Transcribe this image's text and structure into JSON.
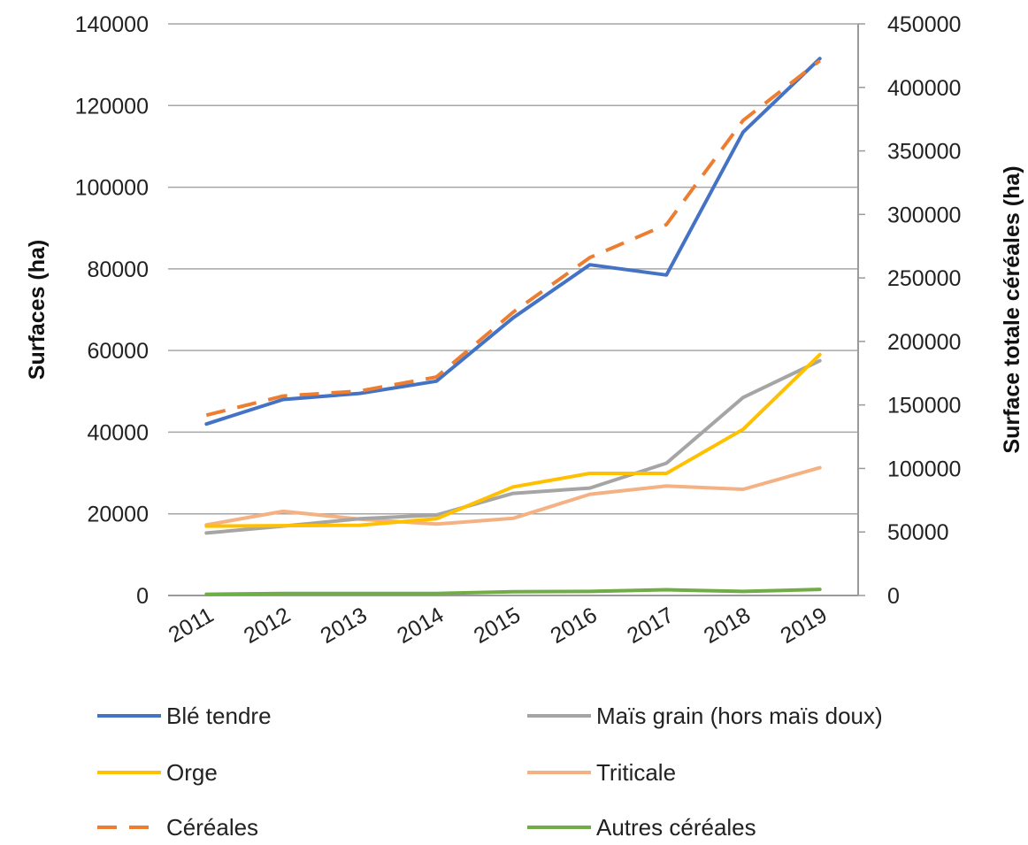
{
  "chart_data": {
    "type": "line",
    "categories": [
      "2011",
      "2012",
      "2013",
      "2014",
      "2015",
      "2016",
      "2017",
      "2018",
      "2019"
    ],
    "ylabel": "Surfaces (ha)",
    "y2label": "Surface totale céréales (ha)",
    "ylim": [
      0,
      140000
    ],
    "y2lim": [
      0,
      450000
    ],
    "yticks": [
      "0",
      "20000",
      "40000",
      "60000",
      "80000",
      "100000",
      "120000",
      "140000"
    ],
    "y2ticks": [
      "0",
      "50000",
      "100000",
      "150000",
      "200000",
      "250000",
      "300000",
      "350000",
      "400000",
      "450000"
    ],
    "grid": true,
    "legend_position": "bottom",
    "series": [
      {
        "name": "Blé tendre",
        "axis": "left",
        "color": "#4472C4",
        "dashed": false,
        "values": [
          42000,
          48000,
          49500,
          52500,
          68000,
          81000,
          78500,
          113500,
          131500
        ]
      },
      {
        "name": "Maïs grain (hors maïs doux)",
        "axis": "left",
        "color": "#A5A5A5",
        "dashed": false,
        "values": [
          15300,
          17000,
          18800,
          19700,
          25000,
          26300,
          32400,
          48500,
          57500
        ]
      },
      {
        "name": "Orge",
        "axis": "left",
        "color": "#FFC000",
        "dashed": false,
        "values": [
          17000,
          17100,
          17200,
          18800,
          26600,
          29900,
          29900,
          40700,
          59000
        ]
      },
      {
        "name": "Triticale",
        "axis": "left",
        "color": "#F4B183",
        "dashed": false,
        "values": [
          17300,
          20600,
          18700,
          17500,
          18900,
          24800,
          26800,
          26000,
          31300
        ]
      },
      {
        "name": "Céréales",
        "axis": "right",
        "color": "#ED7D31",
        "dashed": true,
        "values": [
          142000,
          157000,
          161000,
          172000,
          223000,
          266000,
          292000,
          374000,
          421000
        ]
      },
      {
        "name": "Autres céréales",
        "axis": "left",
        "color": "#70AD47",
        "dashed": false,
        "values": [
          300,
          500,
          500,
          500,
          900,
          1000,
          1400,
          1000,
          1500
        ]
      }
    ]
  }
}
